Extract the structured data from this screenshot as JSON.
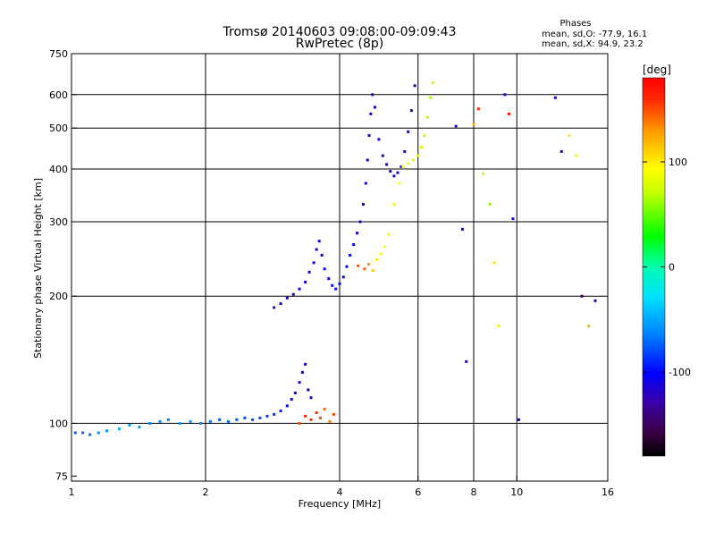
{
  "chart_data": {
    "type": "scatter",
    "title": "Tromsø 20140603 09:08:00-09:09:43",
    "subtitle": "RwPretec (8p)",
    "xlabel": "Frequency [MHz]",
    "ylabel": "Stationary phase Virtual Height [km]",
    "xscale": "log",
    "yscale": "log",
    "xlim": [
      1,
      16
    ],
    "ylim": [
      73,
      750
    ],
    "xticks": [
      1,
      2,
      4,
      6,
      8,
      10,
      16
    ],
    "yticks": [
      75,
      100,
      200,
      300,
      400,
      500,
      600,
      750
    ],
    "xgrid": [
      2,
      4,
      6,
      8,
      10
    ],
    "ygrid": [
      100,
      200,
      300,
      400,
      500,
      600
    ],
    "grid": true,
    "stats": {
      "title": "Phases",
      "line1": "mean, sd,O: -77.9, 16.1",
      "line2": "mean, sd,X:  94.9, 23.2"
    },
    "colorbar": {
      "title": "[deg]",
      "min": -180,
      "max": 180,
      "ticks": [
        100,
        0,
        -100
      ],
      "colormap": "rainbow"
    },
    "series": [
      {
        "points": [
          [
            1.02,
            95,
            -72
          ],
          [
            1.06,
            95,
            -70
          ],
          [
            1.1,
            94,
            -68
          ],
          [
            1.15,
            95,
            -60
          ],
          [
            1.2,
            96,
            -58
          ],
          [
            1.28,
            97,
            -50
          ],
          [
            1.35,
            99,
            -52
          ],
          [
            1.42,
            98,
            -55
          ],
          [
            1.5,
            100,
            -60
          ],
          [
            1.58,
            101,
            -62
          ],
          [
            1.65,
            102,
            -64
          ],
          [
            1.75,
            100,
            -55
          ],
          [
            1.85,
            101,
            -58
          ],
          [
            1.95,
            100,
            -60
          ],
          [
            2.05,
            101,
            -70
          ],
          [
            2.15,
            102,
            -75
          ],
          [
            2.25,
            101,
            -72
          ],
          [
            2.35,
            102,
            -78
          ],
          [
            2.45,
            103,
            -80
          ],
          [
            2.55,
            102,
            -78
          ],
          [
            2.65,
            103,
            -82
          ],
          [
            2.75,
            104,
            -85
          ],
          [
            2.85,
            105,
            -88
          ],
          [
            2.95,
            107,
            -92
          ],
          [
            3.05,
            110,
            -98
          ],
          [
            3.12,
            114,
            -102
          ],
          [
            3.18,
            118,
            -104
          ],
          [
            3.25,
            125,
            -108
          ],
          [
            3.3,
            132,
            -106
          ],
          [
            3.35,
            138,
            -110
          ],
          [
            3.4,
            120,
            -112
          ],
          [
            3.45,
            115,
            -115
          ]
        ]
      },
      {
        "points": [
          [
            3.25,
            100,
            150
          ],
          [
            3.35,
            104,
            160
          ],
          [
            3.45,
            102,
            155
          ],
          [
            3.55,
            106,
            158
          ],
          [
            3.62,
            103,
            150
          ],
          [
            3.7,
            108,
            145
          ],
          [
            3.8,
            101,
            140
          ],
          [
            3.88,
            105,
            152
          ]
        ]
      },
      {
        "points": [
          [
            2.85,
            188,
            -120
          ],
          [
            2.95,
            192,
            -118
          ],
          [
            3.05,
            198,
            -115
          ],
          [
            3.15,
            202,
            -112
          ],
          [
            3.25,
            208,
            -108
          ],
          [
            3.35,
            216,
            -110
          ],
          [
            3.42,
            228,
            -105
          ],
          [
            3.5,
            240,
            -108
          ],
          [
            3.55,
            258,
            -110
          ],
          [
            3.6,
            270,
            -104
          ],
          [
            3.65,
            250,
            -106
          ],
          [
            3.7,
            232,
            -100
          ],
          [
            3.78,
            220,
            -102
          ],
          [
            3.85,
            212,
            -98
          ],
          [
            3.92,
            208,
            -95
          ],
          [
            4.0,
            214,
            -96
          ],
          [
            4.08,
            222,
            -98
          ],
          [
            4.15,
            235,
            -100
          ],
          [
            4.22,
            250,
            -102
          ],
          [
            4.3,
            265,
            -104
          ],
          [
            4.38,
            282,
            -106
          ],
          [
            4.45,
            300,
            -108
          ],
          [
            4.52,
            330,
            -110
          ],
          [
            4.58,
            370,
            -112
          ],
          [
            4.62,
            420,
            -114
          ],
          [
            4.66,
            480,
            -116
          ],
          [
            4.7,
            540,
            -118
          ],
          [
            4.74,
            600,
            -120
          ],
          [
            4.8,
            560,
            -118
          ],
          [
            4.9,
            470,
            -114
          ],
          [
            5.0,
            430,
            -112
          ],
          [
            5.1,
            410,
            -110
          ],
          [
            5.2,
            395,
            -108
          ],
          [
            5.3,
            385,
            -110
          ],
          [
            5.4,
            392,
            -112
          ],
          [
            5.5,
            405,
            -114
          ],
          [
            5.6,
            440,
            -116
          ],
          [
            5.7,
            490,
            -118
          ],
          [
            5.8,
            550,
            -120
          ],
          [
            5.9,
            630,
            -122
          ]
        ]
      },
      {
        "points": [
          [
            4.4,
            236,
            150
          ],
          [
            4.55,
            232,
            145
          ],
          [
            4.65,
            238,
            130
          ],
          [
            4.75,
            230,
            110
          ],
          [
            4.85,
            244,
            100
          ],
          [
            4.95,
            252,
            95
          ],
          [
            5.05,
            262,
            92
          ],
          [
            5.15,
            280,
            90
          ],
          [
            5.3,
            330,
            95
          ],
          [
            5.45,
            370,
            92
          ],
          [
            5.55,
            405,
            90
          ],
          [
            5.7,
            412,
            85
          ],
          [
            5.85,
            420,
            80
          ],
          [
            6.0,
            430,
            78
          ],
          [
            6.1,
            450,
            75
          ],
          [
            6.2,
            480,
            70
          ],
          [
            6.3,
            530,
            68
          ],
          [
            6.4,
            590,
            65
          ],
          [
            6.48,
            640,
            75
          ]
        ]
      },
      {
        "points": [
          [
            7.3,
            505,
            -120
          ],
          [
            7.55,
            288,
            -130
          ],
          [
            7.7,
            140,
            -125
          ],
          [
            8.0,
            510,
            120
          ],
          [
            8.2,
            555,
            160
          ],
          [
            8.4,
            390,
            70
          ],
          [
            8.7,
            330,
            60
          ],
          [
            8.9,
            240,
            100
          ],
          [
            9.1,
            170,
            100
          ],
          [
            9.4,
            600,
            -120
          ],
          [
            9.6,
            540,
            170
          ],
          [
            9.8,
            305,
            -110
          ],
          [
            10.1,
            102,
            -120
          ],
          [
            12.2,
            590,
            -110
          ],
          [
            12.6,
            440,
            -120
          ],
          [
            13.1,
            480,
            100
          ],
          [
            13.6,
            430,
            90
          ],
          [
            14.0,
            200,
            -150
          ],
          [
            14.5,
            170,
            120
          ],
          [
            15.0,
            195,
            -125
          ]
        ]
      }
    ]
  }
}
